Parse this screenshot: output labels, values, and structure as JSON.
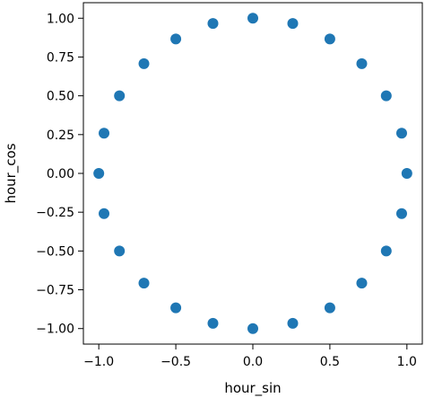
{
  "chart_data": {
    "type": "scatter",
    "title": "",
    "xlabel": "hour_sin",
    "ylabel": "hour_cos",
    "xlim": [
      -1.1,
      1.1
    ],
    "ylim": [
      -1.1,
      1.1
    ],
    "grid": false,
    "x_ticks": [
      -1.0,
      -0.5,
      0.0,
      0.5,
      1.0
    ],
    "x_tick_labels": [
      "−1.0",
      "−0.5",
      "0.0",
      "0.5",
      "1.0"
    ],
    "y_ticks": [
      1.0,
      0.75,
      0.5,
      0.25,
      0.0,
      -0.25,
      -0.5,
      -0.75,
      -1.0
    ],
    "y_tick_labels": [
      "1.00",
      "0.75",
      "0.50",
      "0.25",
      "0.00",
      "−0.25",
      "−0.50",
      "−0.75",
      "−1.00"
    ],
    "marker_color": "#1f77b4",
    "points": [
      {
        "x": 0.0,
        "y": 1.0
      },
      {
        "x": 0.259,
        "y": 0.966
      },
      {
        "x": 0.5,
        "y": 0.866
      },
      {
        "x": 0.707,
        "y": 0.707
      },
      {
        "x": 0.866,
        "y": 0.5
      },
      {
        "x": 0.966,
        "y": 0.259
      },
      {
        "x": 1.0,
        "y": 0.0
      },
      {
        "x": 0.966,
        "y": -0.259
      },
      {
        "x": 0.866,
        "y": -0.5
      },
      {
        "x": 0.707,
        "y": -0.707
      },
      {
        "x": 0.5,
        "y": -0.866
      },
      {
        "x": 0.259,
        "y": -0.966
      },
      {
        "x": 0.0,
        "y": -1.0
      },
      {
        "x": -0.259,
        "y": -0.966
      },
      {
        "x": -0.5,
        "y": -0.866
      },
      {
        "x": -0.707,
        "y": -0.707
      },
      {
        "x": -0.866,
        "y": -0.5
      },
      {
        "x": -0.966,
        "y": -0.259
      },
      {
        "x": -1.0,
        "y": 0.0
      },
      {
        "x": -0.966,
        "y": 0.259
      },
      {
        "x": -0.866,
        "y": 0.5
      },
      {
        "x": -0.707,
        "y": 0.707
      },
      {
        "x": -0.5,
        "y": 0.866
      },
      {
        "x": -0.259,
        "y": 0.966
      }
    ]
  }
}
